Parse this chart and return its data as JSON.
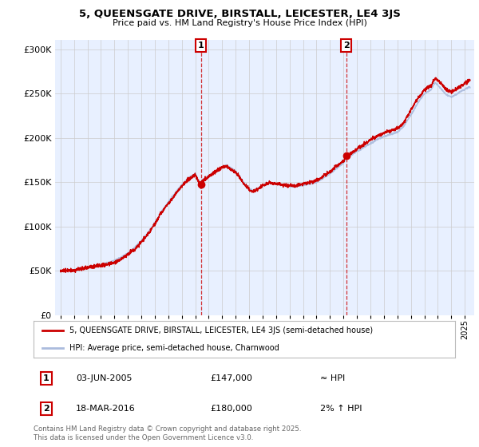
{
  "title_line1": "5, QUEENSGATE DRIVE, BIRSTALL, LEICESTER, LE4 3JS",
  "title_line2": "Price paid vs. HM Land Registry's House Price Index (HPI)",
  "ytick_values": [
    0,
    50000,
    100000,
    150000,
    200000,
    250000,
    300000
  ],
  "ylim": [
    0,
    310000
  ],
  "hpi_color": "#aabbdd",
  "price_color": "#cc0000",
  "bg_color": "#ddeeff",
  "bg_color_light": "#e8f0ff",
  "sale1_x": 2005.42,
  "sale1_y": 147000,
  "sale1_label": "03-JUN-2005",
  "sale1_price": "£147,000",
  "sale1_note": "≈ HPI",
  "sale2_x": 2016.21,
  "sale2_y": 180000,
  "sale2_label": "18-MAR-2016",
  "sale2_price": "£180,000",
  "sale2_note": "2% ↑ HPI",
  "legend_line1": "5, QUEENSGATE DRIVE, BIRSTALL, LEICESTER, LE4 3JS (semi-detached house)",
  "legend_line2": "HPI: Average price, semi-detached house, Charnwood",
  "footer": "Contains HM Land Registry data © Crown copyright and database right 2025.\nThis data is licensed under the Open Government Licence v3.0.",
  "xlim_left": 1994.6,
  "xlim_right": 2025.7
}
